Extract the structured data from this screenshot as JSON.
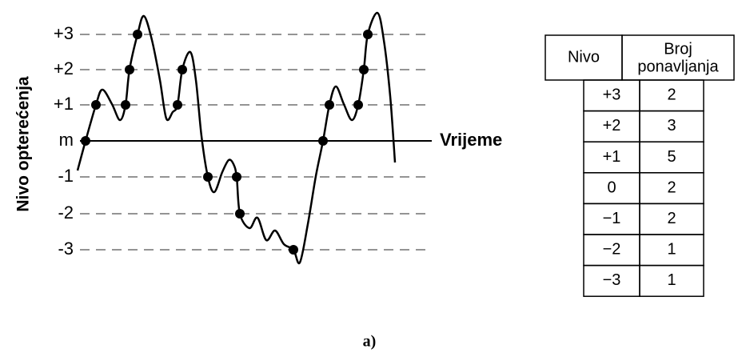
{
  "diagram": {
    "y_axis_label": "Nivo opterećenja",
    "x_axis_label": "Vrijeme",
    "levels": [
      "+3",
      "+2",
      "+1",
      "m",
      "-1",
      "-2",
      "-3"
    ],
    "caption": "a)"
  },
  "table": {
    "header": [
      "Nivo",
      "Broj",
      "ponavljanja"
    ],
    "rows": [
      [
        "+3",
        "2"
      ],
      [
        "+2",
        "3"
      ],
      [
        "+1",
        "5"
      ],
      [
        "0",
        "2"
      ],
      [
        "−1",
        "2"
      ],
      [
        "−2",
        "1"
      ],
      [
        "−3",
        "1"
      ]
    ]
  }
}
